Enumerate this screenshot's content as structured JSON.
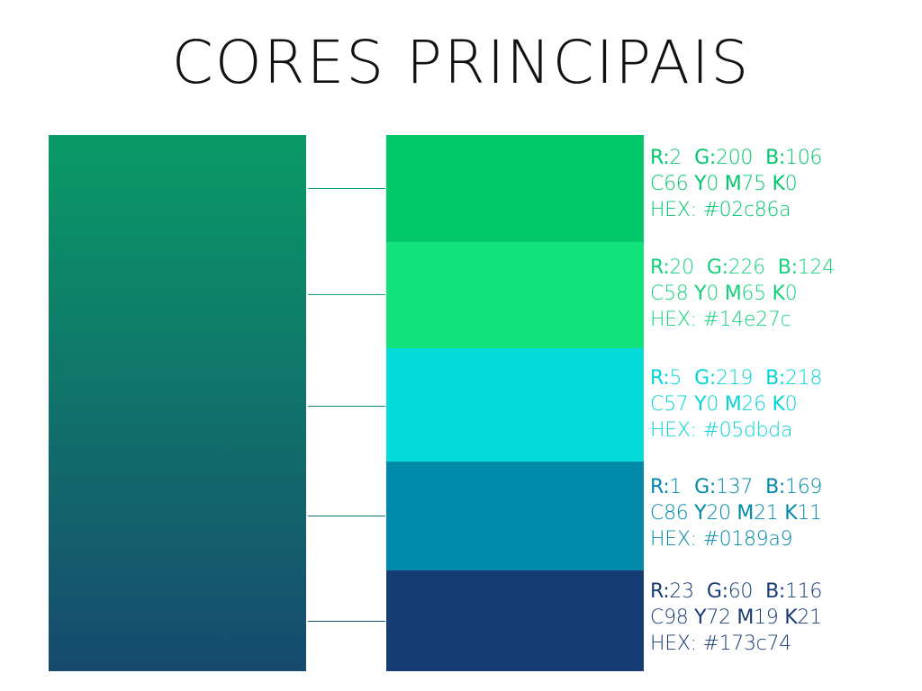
{
  "title": "CORES PRINCIPAIS",
  "gradient": {
    "top_color": "#0a9a66",
    "bottom_color": "#174a6e"
  },
  "swatches": [
    {
      "hex": "#02c86a",
      "text_color": "#02c86a",
      "line_color": "#0ea874",
      "r": "2",
      "g": "200",
      "b": "106",
      "c": "66",
      "y": "0",
      "m": "75",
      "k": "0"
    },
    {
      "hex": "#14e27c",
      "text_color": "#14d27a",
      "line_color": "#10a372",
      "r": "20",
      "g": "226",
      "b": "124",
      "c": "58",
      "y": "0",
      "m": "65",
      "k": "0"
    },
    {
      "hex": "#05dbda",
      "text_color": "#05d5d5",
      "line_color": "#0c8a78",
      "r": "5",
      "g": "219",
      "b": "218",
      "c": "57",
      "y": "0",
      "m": "26",
      "k": "0"
    },
    {
      "hex": "#0189a9",
      "text_color": "#0189a9",
      "line_color": "#0e7a80",
      "r": "1",
      "g": "137",
      "b": "169",
      "c": "86",
      "y": "20",
      "m": "21",
      "k": "11"
    },
    {
      "hex": "#173c74",
      "text_color": "#173c74",
      "line_color": "#16566f",
      "r": "23",
      "g": "60",
      "b": "116",
      "c": "98",
      "y": "72",
      "m": "19",
      "k": "21"
    }
  ],
  "labels": {
    "r": "R:",
    "g": "G:",
    "b": "B:",
    "c": "C",
    "y": "Y",
    "m": "M",
    "k": "K",
    "hex": "HEX:"
  }
}
